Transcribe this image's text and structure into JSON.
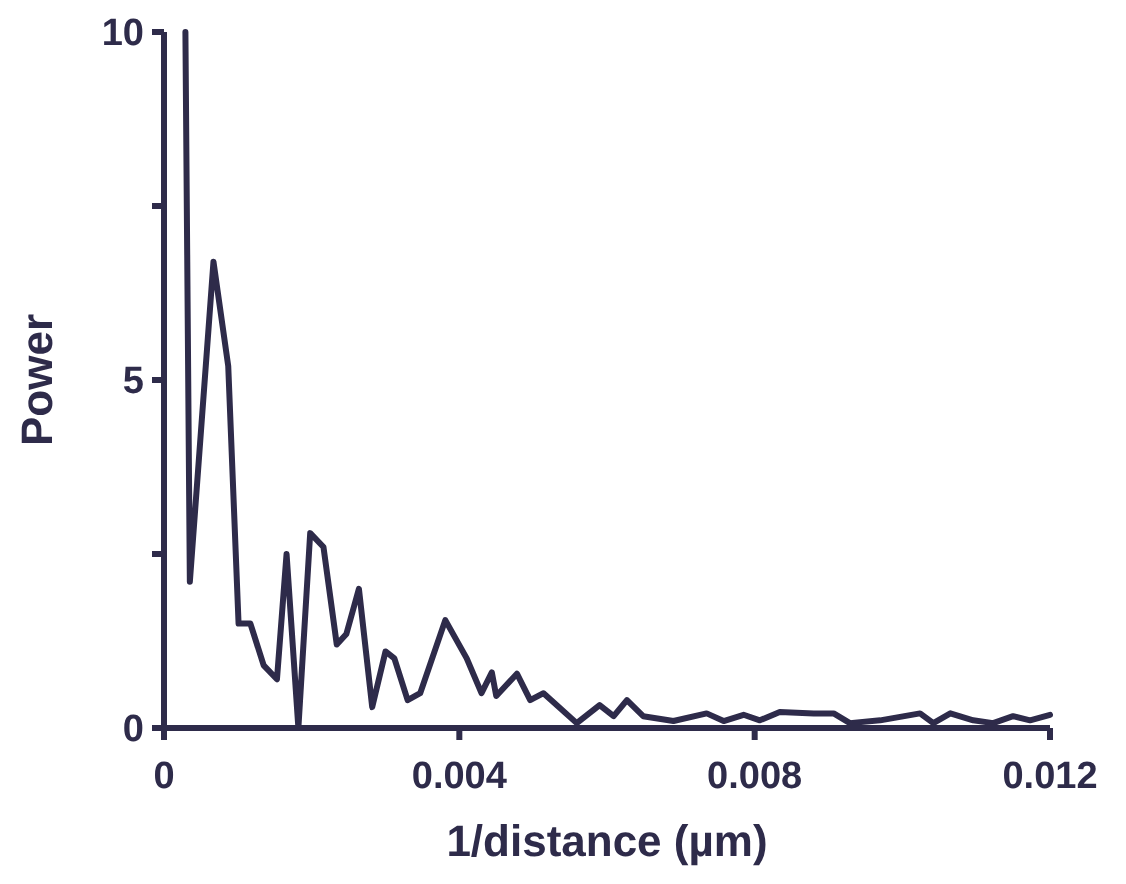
{
  "chart_data": {
    "type": "line",
    "xlabel": "1/distance (µm)",
    "ylabel": "Power",
    "xlim": [
      0,
      0.012
    ],
    "ylim": [
      0,
      10
    ],
    "xticks": [
      0,
      0.004,
      0.008,
      0.012
    ],
    "yticks": [
      0,
      {
        "value": 2.5,
        "label": null
      },
      5,
      {
        "value": 7.5,
        "label": null
      },
      10
    ],
    "grid": false,
    "marker": "none",
    "line_style": "solid",
    "x": [
      0.00029,
      0.00035,
      0.00067,
      0.00087,
      0.00101,
      0.00117,
      0.00135,
      0.00153,
      0.00166,
      0.00182,
      0.00198,
      0.00216,
      0.00234,
      0.00247,
      0.00264,
      0.00282,
      0.003,
      0.00312,
      0.0033,
      0.00347,
      0.00381,
      0.0041,
      0.0043,
      0.00444,
      0.0045,
      0.00478,
      0.00496,
      0.00514,
      0.00559,
      0.0059,
      0.00609,
      0.00627,
      0.00649,
      0.0069,
      0.00735,
      0.00758,
      0.00785,
      0.00807,
      0.00834,
      0.0088,
      0.00907,
      0.00929,
      0.0097,
      0.01024,
      0.01042,
      0.01065,
      0.01096,
      0.01123,
      0.0115,
      0.01173,
      0.012
    ],
    "series": [
      {
        "color": "#2e2b4a",
        "values": [
          10,
          2.1,
          6.7,
          5.2,
          1.5,
          1.5,
          0.9,
          0.7,
          2.5,
          0,
          2.8,
          2.6,
          1.2,
          1.35,
          2.0,
          0.3,
          1.1,
          1.0,
          0.4,
          0.5,
          1.55,
          1.0,
          0.5,
          0.8,
          0.46,
          0.78,
          0.4,
          0.5,
          0.07,
          0.33,
          0.17,
          0.4,
          0.17,
          0.1,
          0.21,
          0.1,
          0.19,
          0.11,
          0.23,
          0.21,
          0.21,
          0.07,
          0.11,
          0.21,
          0.07,
          0.21,
          0.11,
          0.07,
          0.17,
          0.11,
          0.19
        ]
      }
    ]
  }
}
